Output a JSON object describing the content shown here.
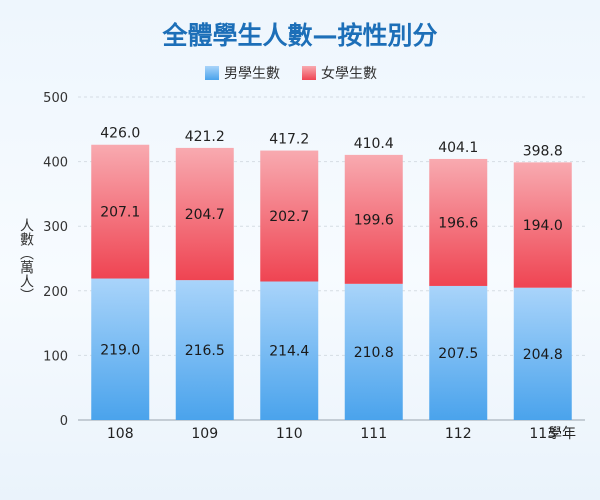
{
  "chart_data": {
    "type": "bar",
    "stacked": true,
    "title": "全體學生人數—按性別分",
    "xlabel": "學年",
    "ylabel": "人數（萬人）",
    "categories": [
      "108",
      "109",
      "110",
      "111",
      "112",
      "113"
    ],
    "series": [
      {
        "name": "男學生數",
        "values": [
          219.0,
          216.5,
          214.4,
          210.8,
          207.5,
          204.8
        ]
      },
      {
        "name": "女學生數",
        "values": [
          207.1,
          204.7,
          202.7,
          199.6,
          196.6,
          194.0
        ]
      }
    ],
    "totals": [
      426.0,
      421.2,
      417.2,
      410.4,
      404.1,
      398.8
    ],
    "ylim": [
      0,
      500
    ],
    "yticks": [
      0,
      100,
      200,
      300,
      400,
      500
    ],
    "grid": true,
    "legend_position": "top-center",
    "colors": {
      "male": "#5aabee",
      "female": "#f25560",
      "title": "#1d6fb8"
    }
  }
}
